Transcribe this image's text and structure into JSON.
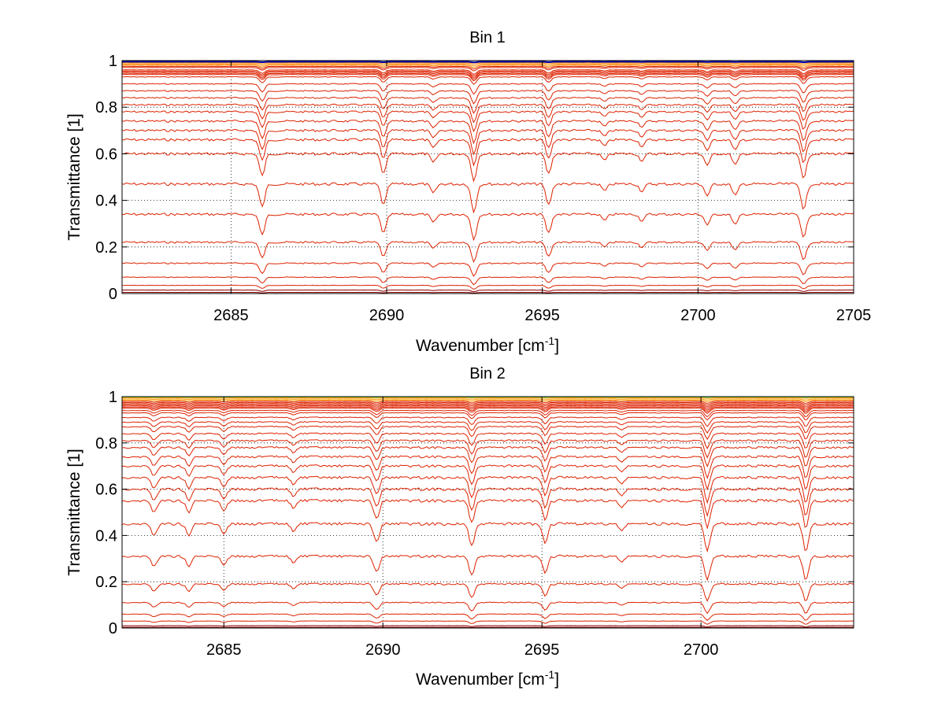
{
  "chart_data": [
    {
      "type": "line",
      "title": "Bin 1",
      "xlabel": "Wavenumber [cm",
      "xlabel_sup": "-1",
      "xlabel_end": "]",
      "ylabel": "Transmittance [1]",
      "xlim": [
        2681.5,
        2705
      ],
      "ylim": [
        0,
        1
      ],
      "xticks": [
        2685,
        2690,
        2695,
        2700,
        2705
      ],
      "yticks": [
        0,
        0.2,
        0.4,
        0.6,
        0.8,
        1
      ],
      "grid": true,
      "baselines": [
        0.995,
        0.99,
        0.985,
        0.98,
        0.975,
        0.97,
        0.96,
        0.955,
        0.95,
        0.945,
        0.94,
        0.93,
        0.9,
        0.87,
        0.84,
        0.81,
        0.78,
        0.74,
        0.7,
        0.66,
        0.6,
        0.47,
        0.34,
        0.22,
        0.13,
        0.07,
        0.035,
        0.015,
        0.005
      ],
      "dips": [
        {
          "x": 2686.0,
          "depth": 0.1
        },
        {
          "x": 2689.9,
          "depth": 0.09
        },
        {
          "x": 2691.5,
          "depth": 0.04
        },
        {
          "x": 2692.8,
          "depth": 0.12
        },
        {
          "x": 2695.2,
          "depth": 0.09
        },
        {
          "x": 2697.0,
          "depth": 0.03
        },
        {
          "x": 2698.2,
          "depth": 0.03
        },
        {
          "x": 2700.3,
          "depth": 0.05
        },
        {
          "x": 2701.2,
          "depth": 0.05
        },
        {
          "x": 2703.4,
          "depth": 0.11
        }
      ],
      "series_colors": {
        "top": "#0000aa",
        "upper": "#ff8800",
        "lines": "#dd2200",
        "bottom": "#8b0000"
      }
    },
    {
      "type": "line",
      "title": "Bin 2",
      "xlabel": "Wavenumber [cm",
      "xlabel_sup": "-1",
      "xlabel_end": "]",
      "ylabel": "Transmittance [1]",
      "xlim": [
        2681.8,
        2704.8
      ],
      "ylim": [
        0,
        1
      ],
      "xticks": [
        2685,
        2690,
        2695,
        2700
      ],
      "yticks": [
        0,
        0.2,
        0.4,
        0.6,
        0.8,
        1
      ],
      "grid": true,
      "baselines": [
        0.998,
        0.995,
        0.99,
        0.985,
        0.98,
        0.975,
        0.97,
        0.965,
        0.96,
        0.955,
        0.95,
        0.94,
        0.93,
        0.91,
        0.89,
        0.87,
        0.84,
        0.81,
        0.78,
        0.74,
        0.7,
        0.65,
        0.6,
        0.55,
        0.45,
        0.31,
        0.19,
        0.11,
        0.06,
        0.03,
        0.01,
        0.003
      ],
      "dips": [
        {
          "x": 2682.8,
          "depth": 0.05
        },
        {
          "x": 2683.9,
          "depth": 0.05
        },
        {
          "x": 2685.0,
          "depth": 0.04
        },
        {
          "x": 2687.2,
          "depth": 0.03
        },
        {
          "x": 2689.8,
          "depth": 0.08
        },
        {
          "x": 2692.8,
          "depth": 0.1
        },
        {
          "x": 2695.1,
          "depth": 0.08
        },
        {
          "x": 2697.5,
          "depth": 0.03
        },
        {
          "x": 2700.2,
          "depth": 0.12
        },
        {
          "x": 2703.3,
          "depth": 0.12
        }
      ],
      "series_colors": {
        "top": "#66dd66",
        "upper": "#ff9900",
        "lines": "#dd2200",
        "bottom": "#8b0000"
      }
    }
  ]
}
